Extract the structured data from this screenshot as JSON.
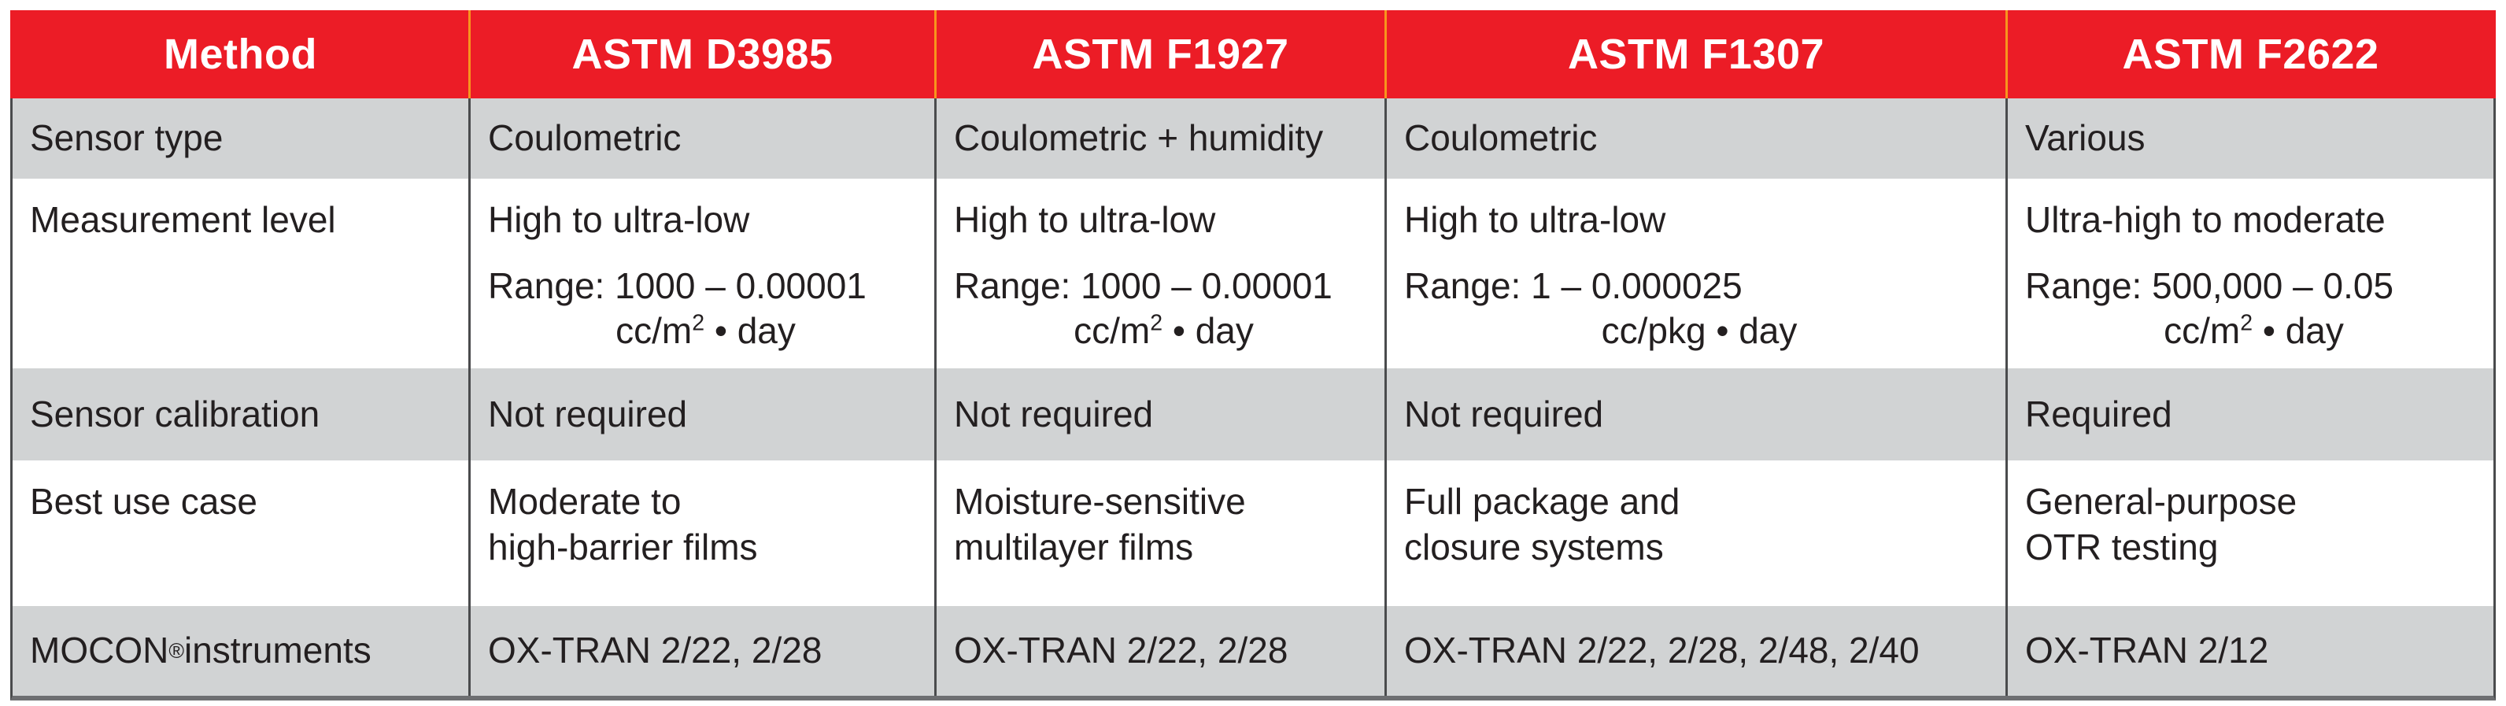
{
  "colors": {
    "header_background": "#EC1C26",
    "header_divider": "#F7941D",
    "gray_row_background": "#D1D3D4",
    "white_row_background": "#FFFFFF",
    "body_divider": "#4A4B4D",
    "bottom_border": "#6D6E71",
    "header_text": "#FFFFFF",
    "body_text": "#231F20"
  },
  "header": {
    "cells": [
      "Method",
      "ASTM D3985",
      "ASTM F1927",
      "ASTM F1307",
      "ASTM F2622"
    ]
  },
  "rows": {
    "sensor_type": {
      "label": "Sensor type",
      "values": [
        "Coulometric",
        "Coulometric + humidity",
        "Coulometric",
        "Various"
      ]
    },
    "measurement_level": {
      "label": "Measurement level",
      "values": [
        {
          "level": "High to ultra-low",
          "range": "Range: 1000 – 0.00001",
          "unit_main": "cc/m",
          "unit_sup": "2",
          "unit_tail": " • day"
        },
        {
          "level": "High to ultra-low",
          "range": "Range: 1000 – 0.00001",
          "unit_main": "cc/m",
          "unit_sup": "2",
          "unit_tail": " • day"
        },
        {
          "level": "High to ultra-low",
          "range": "Range: 1 – 0.000025",
          "unit_main": "cc/pkg",
          "unit_sup": "",
          "unit_tail": " • day"
        },
        {
          "level": "Ultra-high to moderate",
          "range": "Range: 500,000 – 0.05",
          "unit_main": "cc/m",
          "unit_sup": "2",
          "unit_tail": " • day"
        }
      ]
    },
    "sensor_calibration": {
      "label": "Sensor calibration",
      "values": [
        "Not required",
        "Not required",
        "Not required",
        "Required"
      ]
    },
    "best_use_case": {
      "label": "Best use case",
      "values": [
        {
          "line1": "Moderate to",
          "line2": "high-barrier films"
        },
        {
          "line1": "Moisture-sensitive",
          "line2": "multilayer films"
        },
        {
          "line1": "Full package and",
          "line2": "closure systems"
        },
        {
          "line1": "General-purpose",
          "line2": "OTR testing"
        }
      ]
    },
    "mocon_instruments": {
      "label_main": "MOCON",
      "label_reg": "®",
      "label_tail": " instruments",
      "values": [
        "OX-TRAN 2/22, 2/28",
        "OX-TRAN 2/22, 2/28",
        "OX-TRAN 2/22, 2/28, 2/48, 2/40",
        "OX-TRAN 2/12"
      ]
    }
  }
}
